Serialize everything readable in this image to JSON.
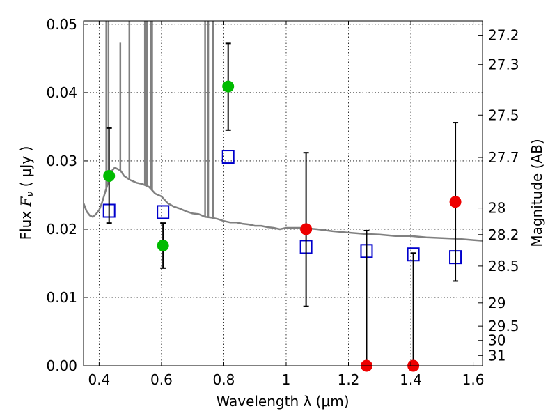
{
  "chart_data": {
    "type": "scatter",
    "xlabel": "Wavelength  λ (μm)",
    "ylabel": "Flux  F_ν  ( μJy )",
    "ylabel_parts": {
      "prefix": "Flux  ",
      "var": "F",
      "sub": "ν",
      "suffix": "  ( μJy )"
    },
    "y2label": "Magnitude (AB)",
    "xlim": [
      0.35,
      1.63
    ],
    "ylim": [
      0.0,
      0.0505
    ],
    "xticks": [
      0.4,
      0.6,
      0.8,
      1.0,
      1.2,
      1.4,
      1.6
    ],
    "xtick_labels": [
      "0.4",
      "0.6",
      "0.8",
      "1",
      "1.2",
      "1.4",
      "1.6"
    ],
    "yticks": [
      0.0,
      0.01,
      0.02,
      0.03,
      0.04,
      0.05
    ],
    "ytick_labels": [
      "0.00",
      "0.01",
      "0.02",
      "0.03",
      "0.04",
      "0.05"
    ],
    "mag_ticks": [
      {
        "label": "27.2",
        "flux": 0.0484
      },
      {
        "label": "27.3",
        "flux": 0.0441
      },
      {
        "label": "27.5",
        "flux": 0.0367
      },
      {
        "label": "27.7",
        "flux": 0.0305
      },
      {
        "label": "28",
        "flux": 0.0231
      },
      {
        "label": "28.2",
        "flux": 0.0192
      },
      {
        "label": "28.5",
        "flux": 0.0146
      },
      {
        "label": "29",
        "flux": 0.0092
      },
      {
        "label": "29.5",
        "flux": 0.0058
      },
      {
        "label": "30",
        "flux": 0.0037
      },
      {
        "label": "31",
        "flux": 0.0015
      }
    ],
    "grid": true,
    "series": [
      {
        "name": "template_sed",
        "kind": "line",
        "color": "#808080",
        "x": [
          0.35,
          0.36,
          0.37,
          0.38,
          0.39,
          0.4,
          0.41,
          0.42,
          0.43,
          0.44,
          0.45,
          0.46,
          0.47,
          0.48,
          0.5,
          0.52,
          0.54,
          0.56,
          0.58,
          0.6,
          0.62,
          0.64,
          0.66,
          0.68,
          0.7,
          0.72,
          0.74,
          0.76,
          0.78,
          0.8,
          0.82,
          0.84,
          0.86,
          0.88,
          0.9,
          0.92,
          0.94,
          0.96,
          0.98,
          1.0,
          1.05,
          1.1,
          1.15,
          1.2,
          1.25,
          1.3,
          1.35,
          1.4,
          1.45,
          1.5,
          1.55,
          1.6,
          1.63
        ],
        "y": [
          0.0238,
          0.0226,
          0.022,
          0.0218,
          0.0222,
          0.0228,
          0.024,
          0.0255,
          0.027,
          0.0285,
          0.029,
          0.0288,
          0.0285,
          0.0278,
          0.0272,
          0.0268,
          0.0266,
          0.0262,
          0.0252,
          0.0248,
          0.0238,
          0.0233,
          0.023,
          0.0226,
          0.0223,
          0.0222,
          0.0218,
          0.0217,
          0.0215,
          0.0212,
          0.021,
          0.021,
          0.0208,
          0.0207,
          0.0205,
          0.0205,
          0.0203,
          0.0202,
          0.02,
          0.0202,
          0.0202,
          0.02,
          0.0197,
          0.0195,
          0.0193,
          0.0192,
          0.019,
          0.019,
          0.0188,
          0.0187,
          0.0186,
          0.0184,
          0.0183
        ]
      },
      {
        "name": "template_emission_lines",
        "kind": "spikes",
        "color": "#808080",
        "lines": [
          {
            "x": 0.423,
            "peak": 0.06
          },
          {
            "x": 0.43,
            "peak": 0.06
          },
          {
            "x": 0.468,
            "peak": 0.0473
          },
          {
            "x": 0.497,
            "peak": 0.06
          },
          {
            "x": 0.547,
            "peak": 0.06
          },
          {
            "x": 0.553,
            "peak": 0.06
          },
          {
            "x": 0.565,
            "peak": 0.06
          },
          {
            "x": 0.57,
            "peak": 0.06
          },
          {
            "x": 0.74,
            "peak": 0.06
          },
          {
            "x": 0.75,
            "peak": 0.06
          },
          {
            "x": 0.765,
            "peak": 0.06
          }
        ]
      },
      {
        "name": "model_photometry",
        "kind": "open_square",
        "color": "#0000cc",
        "x": [
          0.432,
          0.605,
          0.814,
          1.064,
          1.258,
          1.408,
          1.543
        ],
        "y": [
          0.0227,
          0.0225,
          0.0306,
          0.0174,
          0.0168,
          0.0163,
          0.0159
        ]
      },
      {
        "name": "observed_green",
        "kind": "filled_circle",
        "color": "#00bb00",
        "x": [
          0.432,
          0.605,
          0.814
        ],
        "y": [
          0.0278,
          0.0176,
          0.0409
        ],
        "yerr_low": [
          0.0209,
          0.0143,
          0.0345
        ],
        "yerr_high": [
          0.0348,
          0.0209,
          0.0472
        ]
      },
      {
        "name": "observed_red",
        "kind": "filled_circle",
        "color": "#ee0000",
        "x": [
          1.064,
          1.258,
          1.408,
          1.543
        ],
        "y": [
          0.02,
          0.0,
          0.0,
          0.024
        ],
        "yerr_low": [
          0.0087,
          0.0,
          0.0,
          0.0124
        ],
        "yerr_high": [
          0.0312,
          0.0198,
          0.0165,
          0.0356
        ]
      }
    ]
  }
}
